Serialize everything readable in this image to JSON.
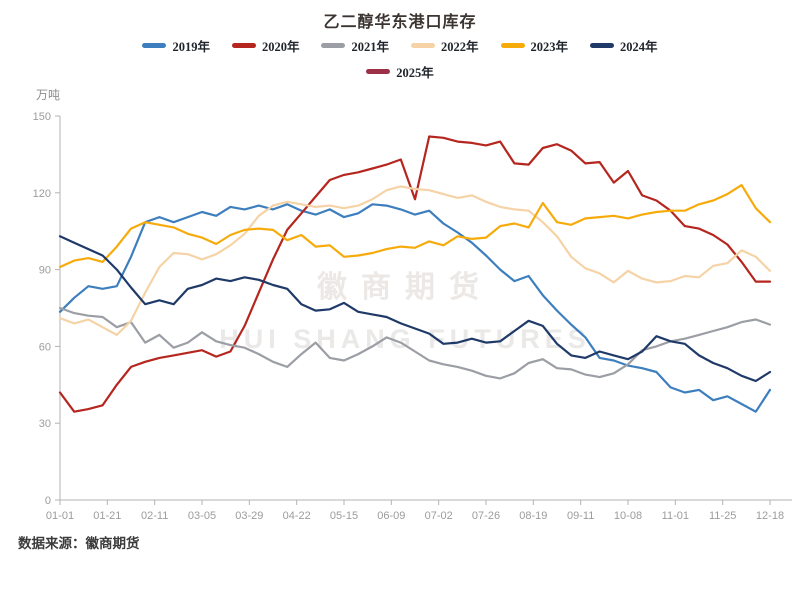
{
  "title": "乙二醇华东港口库存",
  "y_unit": "万吨",
  "watermark": {
    "cn": "徽商期货",
    "en": "HUI SHANG FUTURES"
  },
  "source": "数据来源：徽商期货",
  "chart_data": {
    "type": "line",
    "title": "乙二醇华东港口库存",
    "ylabel": "万吨",
    "ylim": [
      0,
      150
    ],
    "y_ticks": [
      0,
      30,
      60,
      90,
      120,
      150
    ],
    "grid": false,
    "legend_position": "top",
    "x_tick_labels": [
      "01-01",
      "01-21",
      "02-11",
      "03-05",
      "03-29",
      "04-22",
      "05-15",
      "06-09",
      "07-02",
      "07-26",
      "08-19",
      "09-11",
      "10-08",
      "11-01",
      "11-25",
      "12-18"
    ],
    "x_note": "weekly data points, 51 per full-year series, index 0 = 01-01, index 50 = 12-18",
    "series": [
      {
        "name": "2019年",
        "color": "#3D7FBE",
        "values": [
          73.5,
          79,
          83.5,
          82.5,
          83.5,
          95,
          108.5,
          110.5,
          108.5,
          110.5,
          112.5,
          111,
          114.5,
          113.5,
          115,
          113.5,
          115.5,
          113,
          111.5,
          113.5,
          110.5,
          112,
          115.5,
          115,
          113.5,
          111.5,
          113,
          108,
          104.5,
          100.5,
          95.5,
          90,
          85.5,
          87.5,
          80,
          74,
          68.5,
          63.5,
          55.5,
          54.5,
          52.5,
          51.5,
          50,
          44,
          42,
          43,
          39,
          40.5,
          37.5,
          34.5,
          43
        ]
      },
      {
        "name": "2020年",
        "color": "#B5261F",
        "values": [
          42,
          34.5,
          35.5,
          37,
          45,
          52,
          54,
          55.5,
          56.5,
          57.5,
          58.5,
          56,
          58,
          68,
          81,
          94,
          105.5,
          112,
          118.5,
          125,
          127,
          128,
          129.5,
          131,
          133,
          117.5,
          142,
          141.5,
          140,
          139.5,
          138.5,
          140,
          131.5,
          131,
          137.5,
          139,
          136.5,
          131.5,
          132,
          124,
          128.5,
          119,
          117,
          113,
          107,
          106,
          103.5,
          99.8,
          93,
          85.3,
          85.3
        ]
      },
      {
        "name": "2021年",
        "color": "#9B9EA4",
        "values": [
          75,
          73,
          72,
          71.5,
          67.5,
          69.5,
          61.5,
          64.5,
          59.5,
          61.5,
          65.5,
          62,
          60.5,
          59.5,
          57,
          54,
          52,
          57,
          61.5,
          55.5,
          54.5,
          57,
          60,
          63.5,
          61.5,
          58,
          54.5,
          53,
          52,
          50.5,
          48.5,
          47.5,
          49.5,
          53.5,
          55,
          51.5,
          51,
          49,
          48,
          49.5,
          53,
          58.5,
          60,
          62,
          63,
          64.5,
          66,
          67.5,
          69.5,
          70.5,
          68.5
        ]
      },
      {
        "name": "2022年",
        "color": "#F5D3A6",
        "values": [
          71,
          69,
          70.5,
          67.5,
          64.5,
          70,
          81,
          91,
          96.5,
          96,
          94,
          96,
          99.5,
          104,
          111,
          115,
          116.5,
          115.5,
          114.5,
          115,
          114,
          115,
          117.5,
          121,
          122.5,
          121.5,
          121,
          119.5,
          118,
          119,
          116.5,
          114.5,
          113.5,
          113,
          108.5,
          103,
          95,
          90.5,
          88.5,
          85,
          89.5,
          86.5,
          85,
          85.5,
          87.5,
          87,
          91.5,
          92.5,
          97.5,
          95,
          89.5
        ]
      },
      {
        "name": "2023年",
        "color": "#F6AB0B",
        "values": [
          91,
          93.5,
          94.5,
          93,
          99,
          106,
          108.5,
          107.5,
          106.5,
          104,
          102.5,
          100,
          103.5,
          105.5,
          106,
          105.5,
          101.5,
          103.5,
          99,
          99.5,
          95,
          95.5,
          96.5,
          98,
          99,
          98.5,
          101,
          99.5,
          103,
          102,
          102.5,
          107,
          108,
          106.5,
          116,
          108.5,
          107.5,
          110,
          110.5,
          111,
          110,
          111.5,
          112.5,
          113,
          113,
          115.5,
          117,
          119.5,
          123,
          114,
          108.5
        ]
      },
      {
        "name": "2024年",
        "color": "#1F3A68",
        "values": [
          103,
          100.5,
          98,
          95.5,
          90,
          83,
          76.5,
          78,
          76.5,
          82.5,
          84,
          86.5,
          85.5,
          87,
          86,
          84,
          82.5,
          76.5,
          74,
          74.5,
          77,
          73.5,
          72.5,
          71.5,
          69,
          67,
          65,
          61,
          61.5,
          63,
          61.5,
          62,
          66,
          70,
          68,
          61,
          56.5,
          55.5,
          58,
          56.5,
          55,
          58,
          64,
          62,
          61,
          56.5,
          53.5,
          51.5,
          48.5,
          46.5,
          50
        ]
      },
      {
        "name": "2025年",
        "color": "#9B3046",
        "values": []
      }
    ]
  }
}
